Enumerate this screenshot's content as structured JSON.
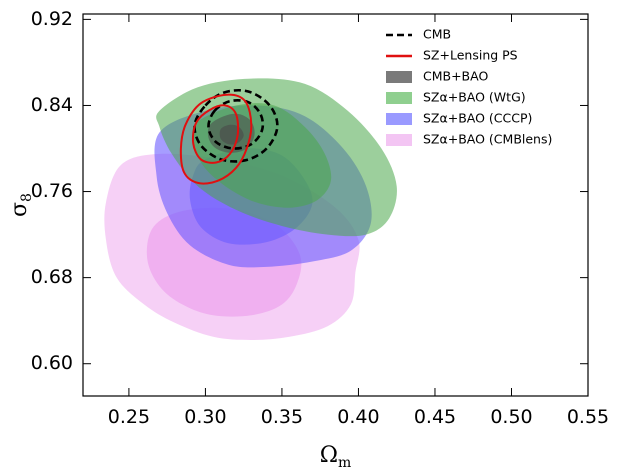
{
  "chart_data": {
    "type": "contour",
    "xlabel": "Ω",
    "xlabel_sub": "m",
    "ylabel": "σ",
    "ylabel_sub": "8",
    "xlim": [
      0.22,
      0.55
    ],
    "ylim": [
      0.57,
      0.925
    ],
    "xticks": [
      0.25,
      0.3,
      0.35,
      0.4,
      0.45,
      0.5,
      0.55
    ],
    "yticks": [
      0.6,
      0.68,
      0.76,
      0.84,
      0.92
    ],
    "xtick_labels": [
      "0.25",
      "0.30",
      "0.35",
      "0.40",
      "0.45",
      "0.50",
      "0.55"
    ],
    "ytick_labels": [
      "0.60",
      "0.68",
      "0.76",
      "0.84",
      "0.92"
    ],
    "legend_position": "top-right",
    "series": [
      {
        "name": "SZα+BAO (CMBlens)",
        "style": "filled",
        "color": "#e88ae8",
        "regions": [
          {
            "level": "95%",
            "opacity": 0.4,
            "points": [
              [
                0.245,
                0.785
              ],
              [
                0.27,
                0.795
              ],
              [
                0.31,
                0.79
              ],
              [
                0.35,
                0.775
              ],
              [
                0.385,
                0.745
              ],
              [
                0.4,
                0.715
              ],
              [
                0.398,
                0.685
              ],
              [
                0.395,
                0.655
              ],
              [
                0.38,
                0.635
              ],
              [
                0.355,
                0.625
              ],
              [
                0.33,
                0.622
              ],
              [
                0.305,
                0.625
              ],
              [
                0.28,
                0.638
              ],
              [
                0.26,
                0.655
              ],
              [
                0.242,
                0.68
              ],
              [
                0.235,
                0.715
              ],
              [
                0.235,
                0.75
              ]
            ]
          },
          {
            "level": "68%",
            "opacity": 0.45,
            "points": [
              [
                0.265,
                0.725
              ],
              [
                0.28,
                0.74
              ],
              [
                0.305,
                0.745
              ],
              [
                0.33,
                0.74
              ],
              [
                0.35,
                0.725
              ],
              [
                0.362,
                0.7
              ],
              [
                0.36,
                0.675
              ],
              [
                0.35,
                0.655
              ],
              [
                0.33,
                0.645
              ],
              [
                0.305,
                0.645
              ],
              [
                0.285,
                0.655
              ],
              [
                0.27,
                0.672
              ],
              [
                0.262,
                0.697
              ]
            ]
          }
        ]
      },
      {
        "name": "SZα+BAO (CCCP)",
        "style": "filled",
        "color": "#6a5cff",
        "regions": [
          {
            "level": "95%",
            "opacity": 0.6,
            "points": [
              [
                0.27,
                0.815
              ],
              [
                0.3,
                0.835
              ],
              [
                0.335,
                0.84
              ],
              [
                0.365,
                0.83
              ],
              [
                0.39,
                0.8
              ],
              [
                0.405,
                0.765
              ],
              [
                0.408,
                0.73
              ],
              [
                0.395,
                0.705
              ],
              [
                0.37,
                0.695
              ],
              [
                0.34,
                0.69
              ],
              [
                0.315,
                0.692
              ],
              [
                0.29,
                0.71
              ],
              [
                0.275,
                0.74
              ],
              [
                0.268,
                0.775
              ]
            ]
          },
          {
            "level": "68%",
            "opacity": 0.6,
            "points": [
              [
                0.3,
                0.79
              ],
              [
                0.325,
                0.8
              ],
              [
                0.348,
                0.795
              ],
              [
                0.363,
                0.775
              ],
              [
                0.37,
                0.75
              ],
              [
                0.36,
                0.727
              ],
              [
                0.34,
                0.713
              ],
              [
                0.315,
                0.712
              ],
              [
                0.297,
                0.727
              ],
              [
                0.29,
                0.752
              ],
              [
                0.292,
                0.775
              ]
            ]
          }
        ]
      },
      {
        "name": "SZα+BAO (WtG)",
        "style": "filled",
        "color": "#4aa84a",
        "regions": [
          {
            "level": "95%",
            "opacity": 0.55,
            "points": [
              [
                0.27,
                0.835
              ],
              [
                0.295,
                0.857
              ],
              [
                0.33,
                0.865
              ],
              [
                0.365,
                0.86
              ],
              [
                0.393,
                0.835
              ],
              [
                0.415,
                0.8
              ],
              [
                0.425,
                0.765
              ],
              [
                0.42,
                0.735
              ],
              [
                0.405,
                0.72
              ],
              [
                0.38,
                0.72
              ],
              [
                0.35,
                0.728
              ],
              [
                0.32,
                0.743
              ],
              [
                0.295,
                0.765
              ],
              [
                0.278,
                0.795
              ],
              [
                0.27,
                0.82
              ]
            ]
          },
          {
            "level": "68%",
            "opacity": 0.55,
            "points": [
              [
                0.295,
                0.825
              ],
              [
                0.32,
                0.84
              ],
              [
                0.345,
                0.84
              ],
              [
                0.365,
                0.82
              ],
              [
                0.378,
                0.795
              ],
              [
                0.382,
                0.77
              ],
              [
                0.373,
                0.752
              ],
              [
                0.355,
                0.745
              ],
              [
                0.333,
                0.75
              ],
              [
                0.313,
                0.765
              ],
              [
                0.298,
                0.785
              ],
              [
                0.292,
                0.808
              ]
            ]
          }
        ]
      },
      {
        "name": "CMB+BAO",
        "style": "filled",
        "color": "#4a4a4a",
        "regions": [
          {
            "level": "95%",
            "opacity": 0.55,
            "points": [
              [
                0.303,
                0.822
              ],
              [
                0.312,
                0.83
              ],
              [
                0.322,
                0.832
              ],
              [
                0.33,
                0.825
              ],
              [
                0.332,
                0.812
              ],
              [
                0.327,
                0.8
              ],
              [
                0.317,
                0.796
              ],
              [
                0.307,
                0.8
              ],
              [
                0.302,
                0.81
              ]
            ]
          },
          {
            "level": "68%",
            "opacity": 0.6,
            "points": [
              [
                0.31,
                0.818
              ],
              [
                0.316,
                0.822
              ],
              [
                0.322,
                0.82
              ],
              [
                0.325,
                0.812
              ],
              [
                0.321,
                0.805
              ],
              [
                0.315,
                0.804
              ],
              [
                0.31,
                0.809
              ]
            ]
          }
        ]
      },
      {
        "name": "CMB",
        "style": "dashed",
        "color": "#000000",
        "regions": [
          {
            "level": "95%",
            "points": [
              [
                0.3,
                0.84
              ],
              [
                0.312,
                0.852
              ],
              [
                0.328,
                0.853
              ],
              [
                0.342,
                0.84
              ],
              [
                0.347,
                0.82
              ],
              [
                0.34,
                0.8
              ],
              [
                0.326,
                0.789
              ],
              [
                0.31,
                0.79
              ],
              [
                0.297,
                0.803
              ],
              [
                0.293,
                0.822
              ]
            ]
          },
          {
            "level": "68%",
            "points": [
              [
                0.306,
                0.835
              ],
              [
                0.316,
                0.844
              ],
              [
                0.328,
                0.843
              ],
              [
                0.336,
                0.832
              ],
              [
                0.337,
                0.817
              ],
              [
                0.33,
                0.804
              ],
              [
                0.318,
                0.8
              ],
              [
                0.307,
                0.806
              ],
              [
                0.302,
                0.82
              ]
            ]
          }
        ]
      },
      {
        "name": "SZ+Lensing PS",
        "style": "line",
        "color": "#e01010",
        "regions": [
          {
            "level": "95%",
            "points": [
              [
                0.297,
                0.842
              ],
              [
                0.314,
                0.85
              ],
              [
                0.326,
                0.844
              ],
              [
                0.33,
                0.822
              ],
              [
                0.327,
                0.8
              ],
              [
                0.32,
                0.782
              ],
              [
                0.308,
                0.77
              ],
              [
                0.295,
                0.768
              ],
              [
                0.286,
                0.778
              ],
              [
                0.284,
                0.8
              ],
              [
                0.287,
                0.822
              ]
            ]
          },
          {
            "level": "68%",
            "points": [
              [
                0.303,
                0.836
              ],
              [
                0.313,
                0.84
              ],
              [
                0.32,
                0.832
              ],
              [
                0.321,
                0.812
              ],
              [
                0.316,
                0.795
              ],
              [
                0.307,
                0.787
              ],
              [
                0.297,
                0.79
              ],
              [
                0.292,
                0.805
              ],
              [
                0.294,
                0.824
              ]
            ]
          }
        ]
      }
    ],
    "legend": [
      {
        "label": "CMB",
        "kind": "dashed",
        "color": "#000000"
      },
      {
        "label": "SZ+Lensing PS",
        "kind": "line",
        "color": "#e01010"
      },
      {
        "label": "CMB+BAO",
        "kind": "patch",
        "color": "#7a7a7a"
      },
      {
        "label": "SZα+BAO (WtG)",
        "kind": "patch",
        "color": "#8fcf8f"
      },
      {
        "label": "SZα+BAO (CCCP)",
        "kind": "patch",
        "color": "#9a9aff"
      },
      {
        "label": "SZα+BAO (CMBlens)",
        "kind": "patch",
        "color": "#f3c5f3"
      }
    ]
  }
}
